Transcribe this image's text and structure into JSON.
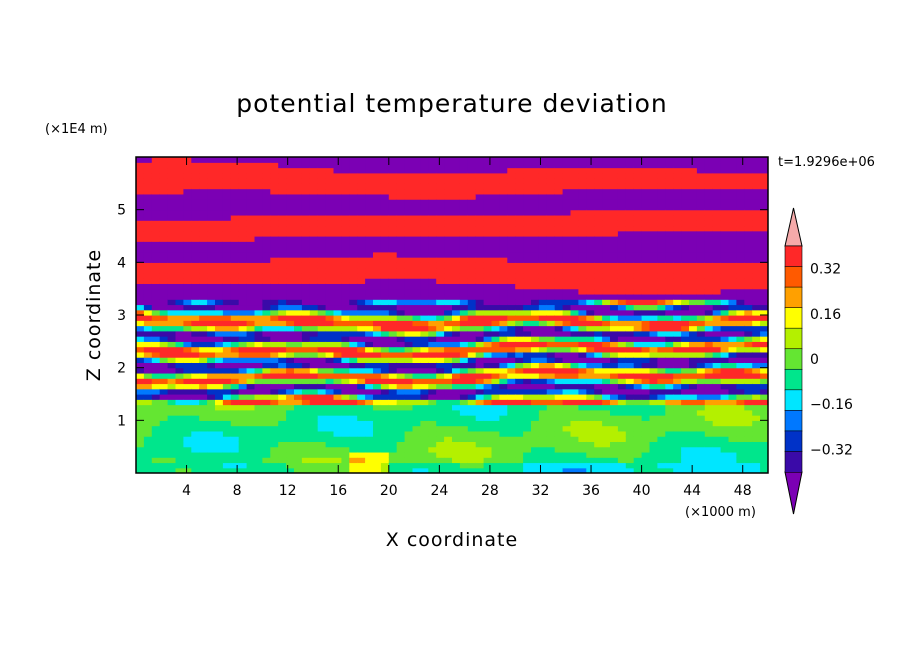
{
  "chart_data": {
    "type": "heatmap",
    "title": "potential temperature deviation",
    "xlabel": "X coordinate",
    "ylabel": "Z coordinate",
    "x_unit": "(×1000 m)",
    "y_unit": "(×1E4 m)",
    "time_label": "t=1.9296e+06",
    "xlim": [
      0,
      50
    ],
    "ylim": [
      0,
      6
    ],
    "x_ticks": [
      4,
      8,
      12,
      16,
      20,
      24,
      28,
      32,
      36,
      40,
      44,
      48
    ],
    "y_ticks": [
      1,
      2,
      3,
      4,
      5
    ],
    "colorbar": {
      "levels": [
        -0.4,
        -0.32,
        -0.24,
        -0.16,
        -0.08,
        0,
        0.08,
        0.16,
        0.24,
        0.32,
        0.4
      ],
      "labeled_levels": [
        0.32,
        0.16,
        0,
        -0.16,
        -0.32
      ],
      "colors_low_to_high": [
        "#7b00b4",
        "#3a0aa8",
        "#0032c8",
        "#0078ff",
        "#00e6ff",
        "#00e68c",
        "#64e632",
        "#b4f000",
        "#ffff00",
        "#ffa000",
        "#ff5a00",
        "#ff2828",
        "#f5aaaa"
      ],
      "over_color": "#f5aaaa",
      "under_color": "#7b00b4",
      "extend": "both"
    }
  }
}
